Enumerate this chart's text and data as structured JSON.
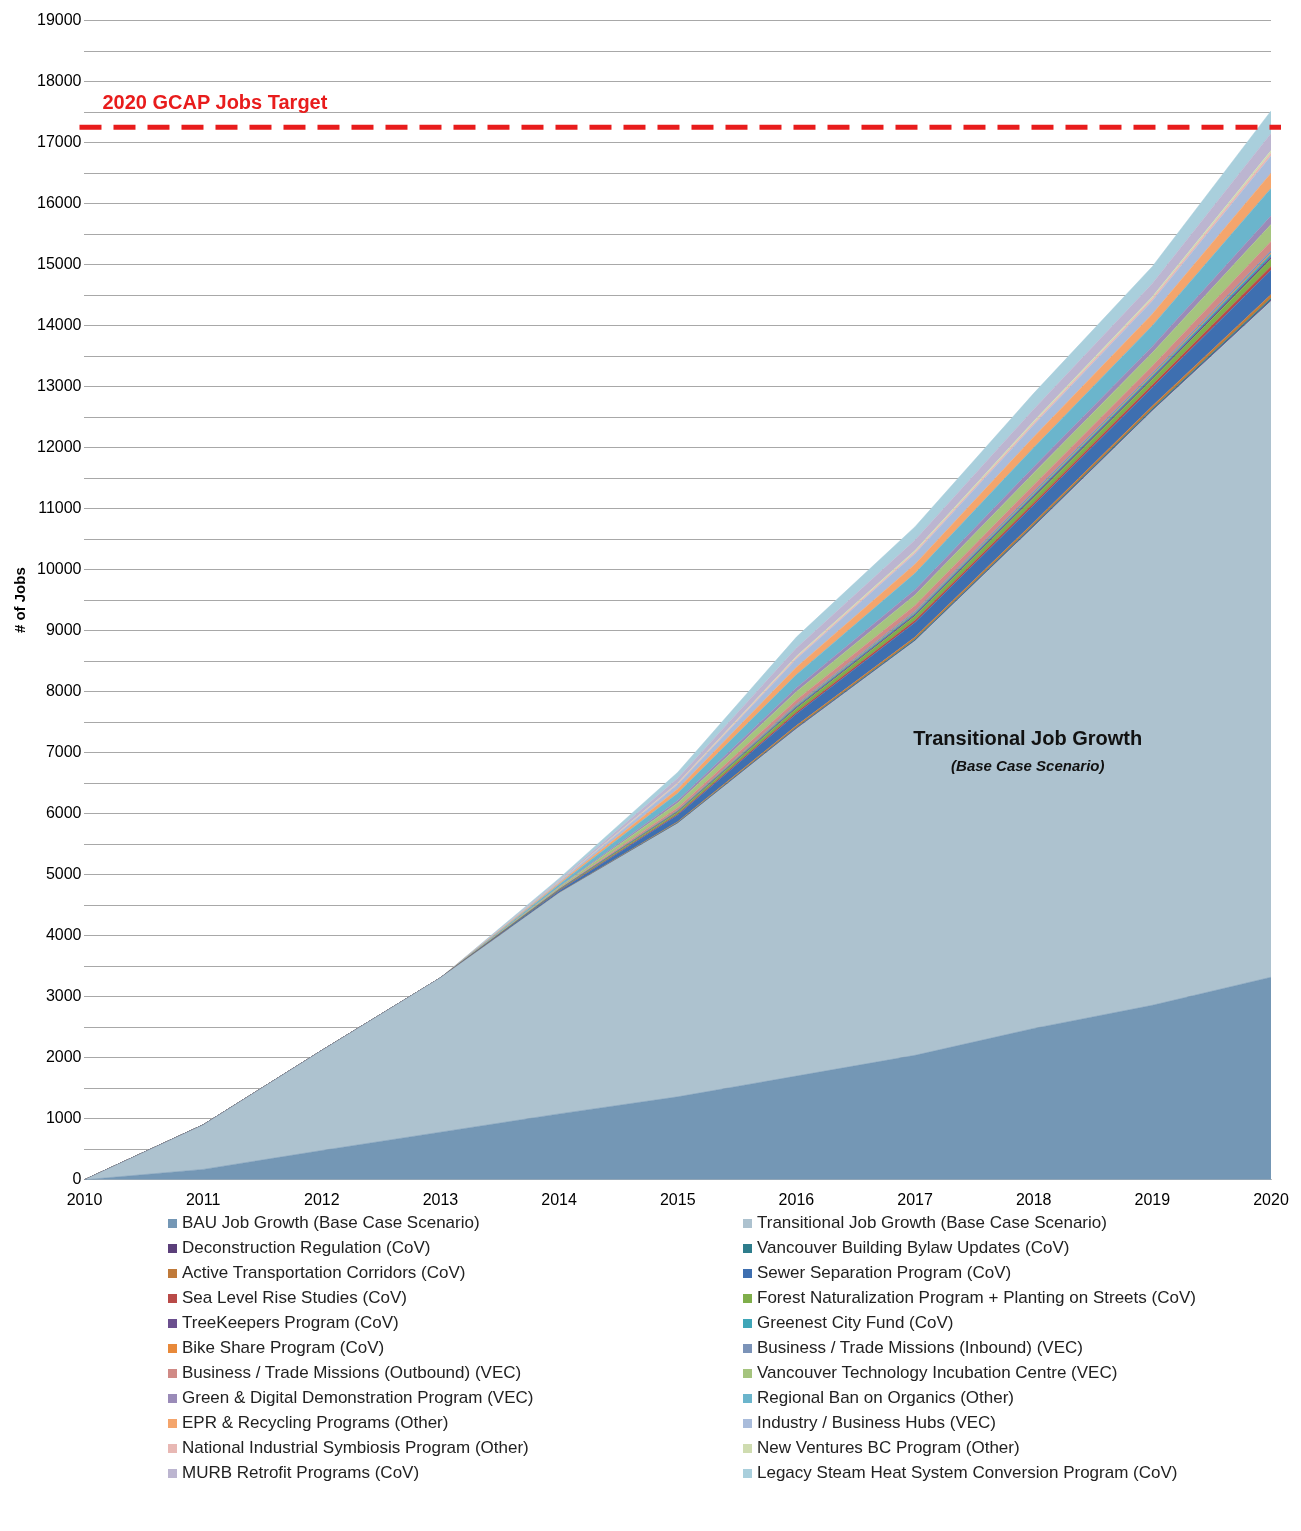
{
  "chart_data": {
    "type": "area",
    "stacked": true,
    "ylabel": "# of Jobs",
    "x": [
      2010,
      2011,
      2012,
      2013,
      2014,
      2015,
      2016,
      2017,
      2018,
      2019,
      2020
    ],
    "xlim": [
      2010,
      2020
    ],
    "xticks": [
      2010,
      2011,
      2012,
      2013,
      2014,
      2015,
      2016,
      2017,
      2018,
      2019,
      2020
    ],
    "ylim": [
      0,
      19000
    ],
    "yticks": [
      0,
      {
        "value": 500,
        "label": null
      },
      1000,
      {
        "value": 1500,
        "label": null
      },
      2000,
      {
        "value": 2500,
        "label": null
      },
      3000,
      {
        "value": 3500,
        "label": null
      },
      4000,
      {
        "value": 4500,
        "label": null
      },
      5000,
      {
        "value": 5500,
        "label": null
      },
      6000,
      {
        "value": 6500,
        "label": null
      },
      7000,
      {
        "value": 7500,
        "label": null
      },
      8000,
      {
        "value": 8500,
        "label": null
      },
      9000,
      {
        "value": 9500,
        "label": null
      },
      10000,
      {
        "value": 10500,
        "label": null
      },
      11000,
      {
        "value": 11500,
        "label": null
      },
      12000,
      {
        "value": 12500,
        "label": null
      },
      13000,
      {
        "value": 13500,
        "label": null
      },
      14000,
      {
        "value": 14500,
        "label": null
      },
      15000,
      {
        "value": 15500,
        "label": null
      },
      16000,
      {
        "value": 16500,
        "label": null
      },
      17000,
      {
        "value": 17500,
        "label": null
      },
      18000,
      {
        "value": 18500,
        "label": null
      },
      19000
    ],
    "grid": "y",
    "legend": "bottom",
    "ref_lines": [
      {
        "axis": "y",
        "value": 17250,
        "label": "2020 GCAP Jobs Target",
        "color": "#e81c1c",
        "line_style": "dashed"
      }
    ],
    "annotations": [
      "Transitional Job Growth",
      "(Base Case Scenario)"
    ],
    "series": [
      {
        "name": "BAU Job Growth (Base Case Scenario)",
        "color": "#7497b5",
        "values": [
          0,
          170,
          480,
          780,
          1080,
          1360,
          1700,
          2040,
          2480,
          2860,
          3320
        ]
      },
      {
        "name": "Transitional Job Growth (Base Case Scenario)",
        "color": "#adc2cf",
        "values": [
          0,
          730,
          1640,
          2530,
          3620,
          4480,
          5690,
          6790,
          8220,
          9740,
          11080
        ]
      },
      {
        "name": "Deconstruction Regulation (CoV)",
        "color": "#5b3f7a",
        "values": [
          0,
          0,
          0,
          0,
          0,
          5,
          10,
          10,
          15,
          15,
          20
        ]
      },
      {
        "name": "Vancouver Building Bylaw Updates (CoV)",
        "color": "#2e7d8c",
        "values": [
          0,
          0,
          0,
          0,
          0,
          10,
          15,
          20,
          20,
          25,
          30
        ]
      },
      {
        "name": "Active Transportation Corridors (CoV)",
        "color": "#c07a3a",
        "values": [
          0,
          0,
          0,
          0,
          5,
          15,
          30,
          35,
          40,
          45,
          60
        ]
      },
      {
        "name": "Sewer Separation Program (CoV)",
        "color": "#3e6fb0",
        "values": [
          0,
          0,
          0,
          0,
          30,
          110,
          190,
          240,
          280,
          300,
          400
        ]
      },
      {
        "name": "Sea Level Rise Studies (CoV)",
        "color": "#b94a48",
        "values": [
          0,
          0,
          0,
          0,
          5,
          15,
          30,
          35,
          40,
          45,
          60
        ]
      },
      {
        "name": "Forest Naturalization Program + Planting on Streets (CoV)",
        "color": "#7fae4a",
        "values": [
          0,
          0,
          0,
          0,
          10,
          30,
          60,
          70,
          85,
          90,
          120
        ]
      },
      {
        "name": "TreeKeepers Program (CoV)",
        "color": "#6b4f8e",
        "values": [
          0,
          0,
          0,
          0,
          5,
          10,
          20,
          25,
          30,
          30,
          40
        ]
      },
      {
        "name": "Greenest City Fund (CoV)",
        "color": "#3fa6b8",
        "values": [
          0,
          0,
          0,
          0,
          5,
          10,
          20,
          25,
          30,
          30,
          40
        ]
      },
      {
        "name": "Bike Share Program (CoV)",
        "color": "#e8893a",
        "values": [
          0,
          0,
          0,
          0,
          0,
          5,
          10,
          10,
          15,
          15,
          20
        ]
      },
      {
        "name": "Business / Trade Missions (Inbound) (VEC)",
        "color": "#7b93b8",
        "values": [
          0,
          0,
          0,
          0,
          5,
          10,
          20,
          25,
          30,
          30,
          40
        ]
      },
      {
        "name": "Business / Trade Missions (Outbound) (VEC)",
        "color": "#d08a86",
        "values": [
          0,
          0,
          0,
          0,
          10,
          40,
          70,
          90,
          105,
          115,
          150
        ]
      },
      {
        "name": "Vancouver Technology Incubation Centre (VEC)",
        "color": "#a5c47e",
        "values": [
          0,
          0,
          0,
          0,
          20,
          75,
          135,
          170,
          195,
          215,
          280
        ]
      },
      {
        "name": "Green & Digital Demonstration Program (VEC)",
        "color": "#9a8bb8",
        "values": [
          0,
          0,
          0,
          0,
          10,
          40,
          65,
          85,
          100,
          105,
          140
        ]
      },
      {
        "name": "Regional Ban on Organics (Other)",
        "color": "#6bb5cc",
        "values": [
          0,
          0,
          0,
          0,
          35,
          120,
          215,
          270,
          315,
          340,
          450
        ]
      },
      {
        "name": "EPR & Recycling Programs (Other)",
        "color": "#f4a56c",
        "values": [
          0,
          0,
          0,
          0,
          20,
          70,
          120,
          150,
          175,
          190,
          250
        ]
      },
      {
        "name": "Industry / Business Hubs (VEC)",
        "color": "#a9bcdb",
        "values": [
          0,
          0,
          0,
          0,
          20,
          75,
          135,
          170,
          195,
          215,
          280
        ]
      },
      {
        "name": "National Industrial Symbiosis Program (Other)",
        "color": "#e8b8b4",
        "values": [
          0,
          0,
          0,
          0,
          5,
          15,
          25,
          30,
          35,
          40,
          50
        ]
      },
      {
        "name": "New Ventures BC Program (Other)",
        "color": "#cfdcb0",
        "values": [
          0,
          0,
          0,
          0,
          5,
          10,
          20,
          25,
          30,
          30,
          40
        ]
      },
      {
        "name": "MURB Retrofit Programs (CoV)",
        "color": "#bcb5d0",
        "values": [
          0,
          0,
          0,
          0,
          20,
          75,
          135,
          170,
          195,
          215,
          280
        ]
      },
      {
        "name": "Legacy Steam Heat System Conversion Program (CoV)",
        "color": "#a9cfdc",
        "values": [
          0,
          0,
          0,
          0,
          30,
          100,
          180,
          220,
          260,
          280,
          370
        ]
      }
    ]
  }
}
